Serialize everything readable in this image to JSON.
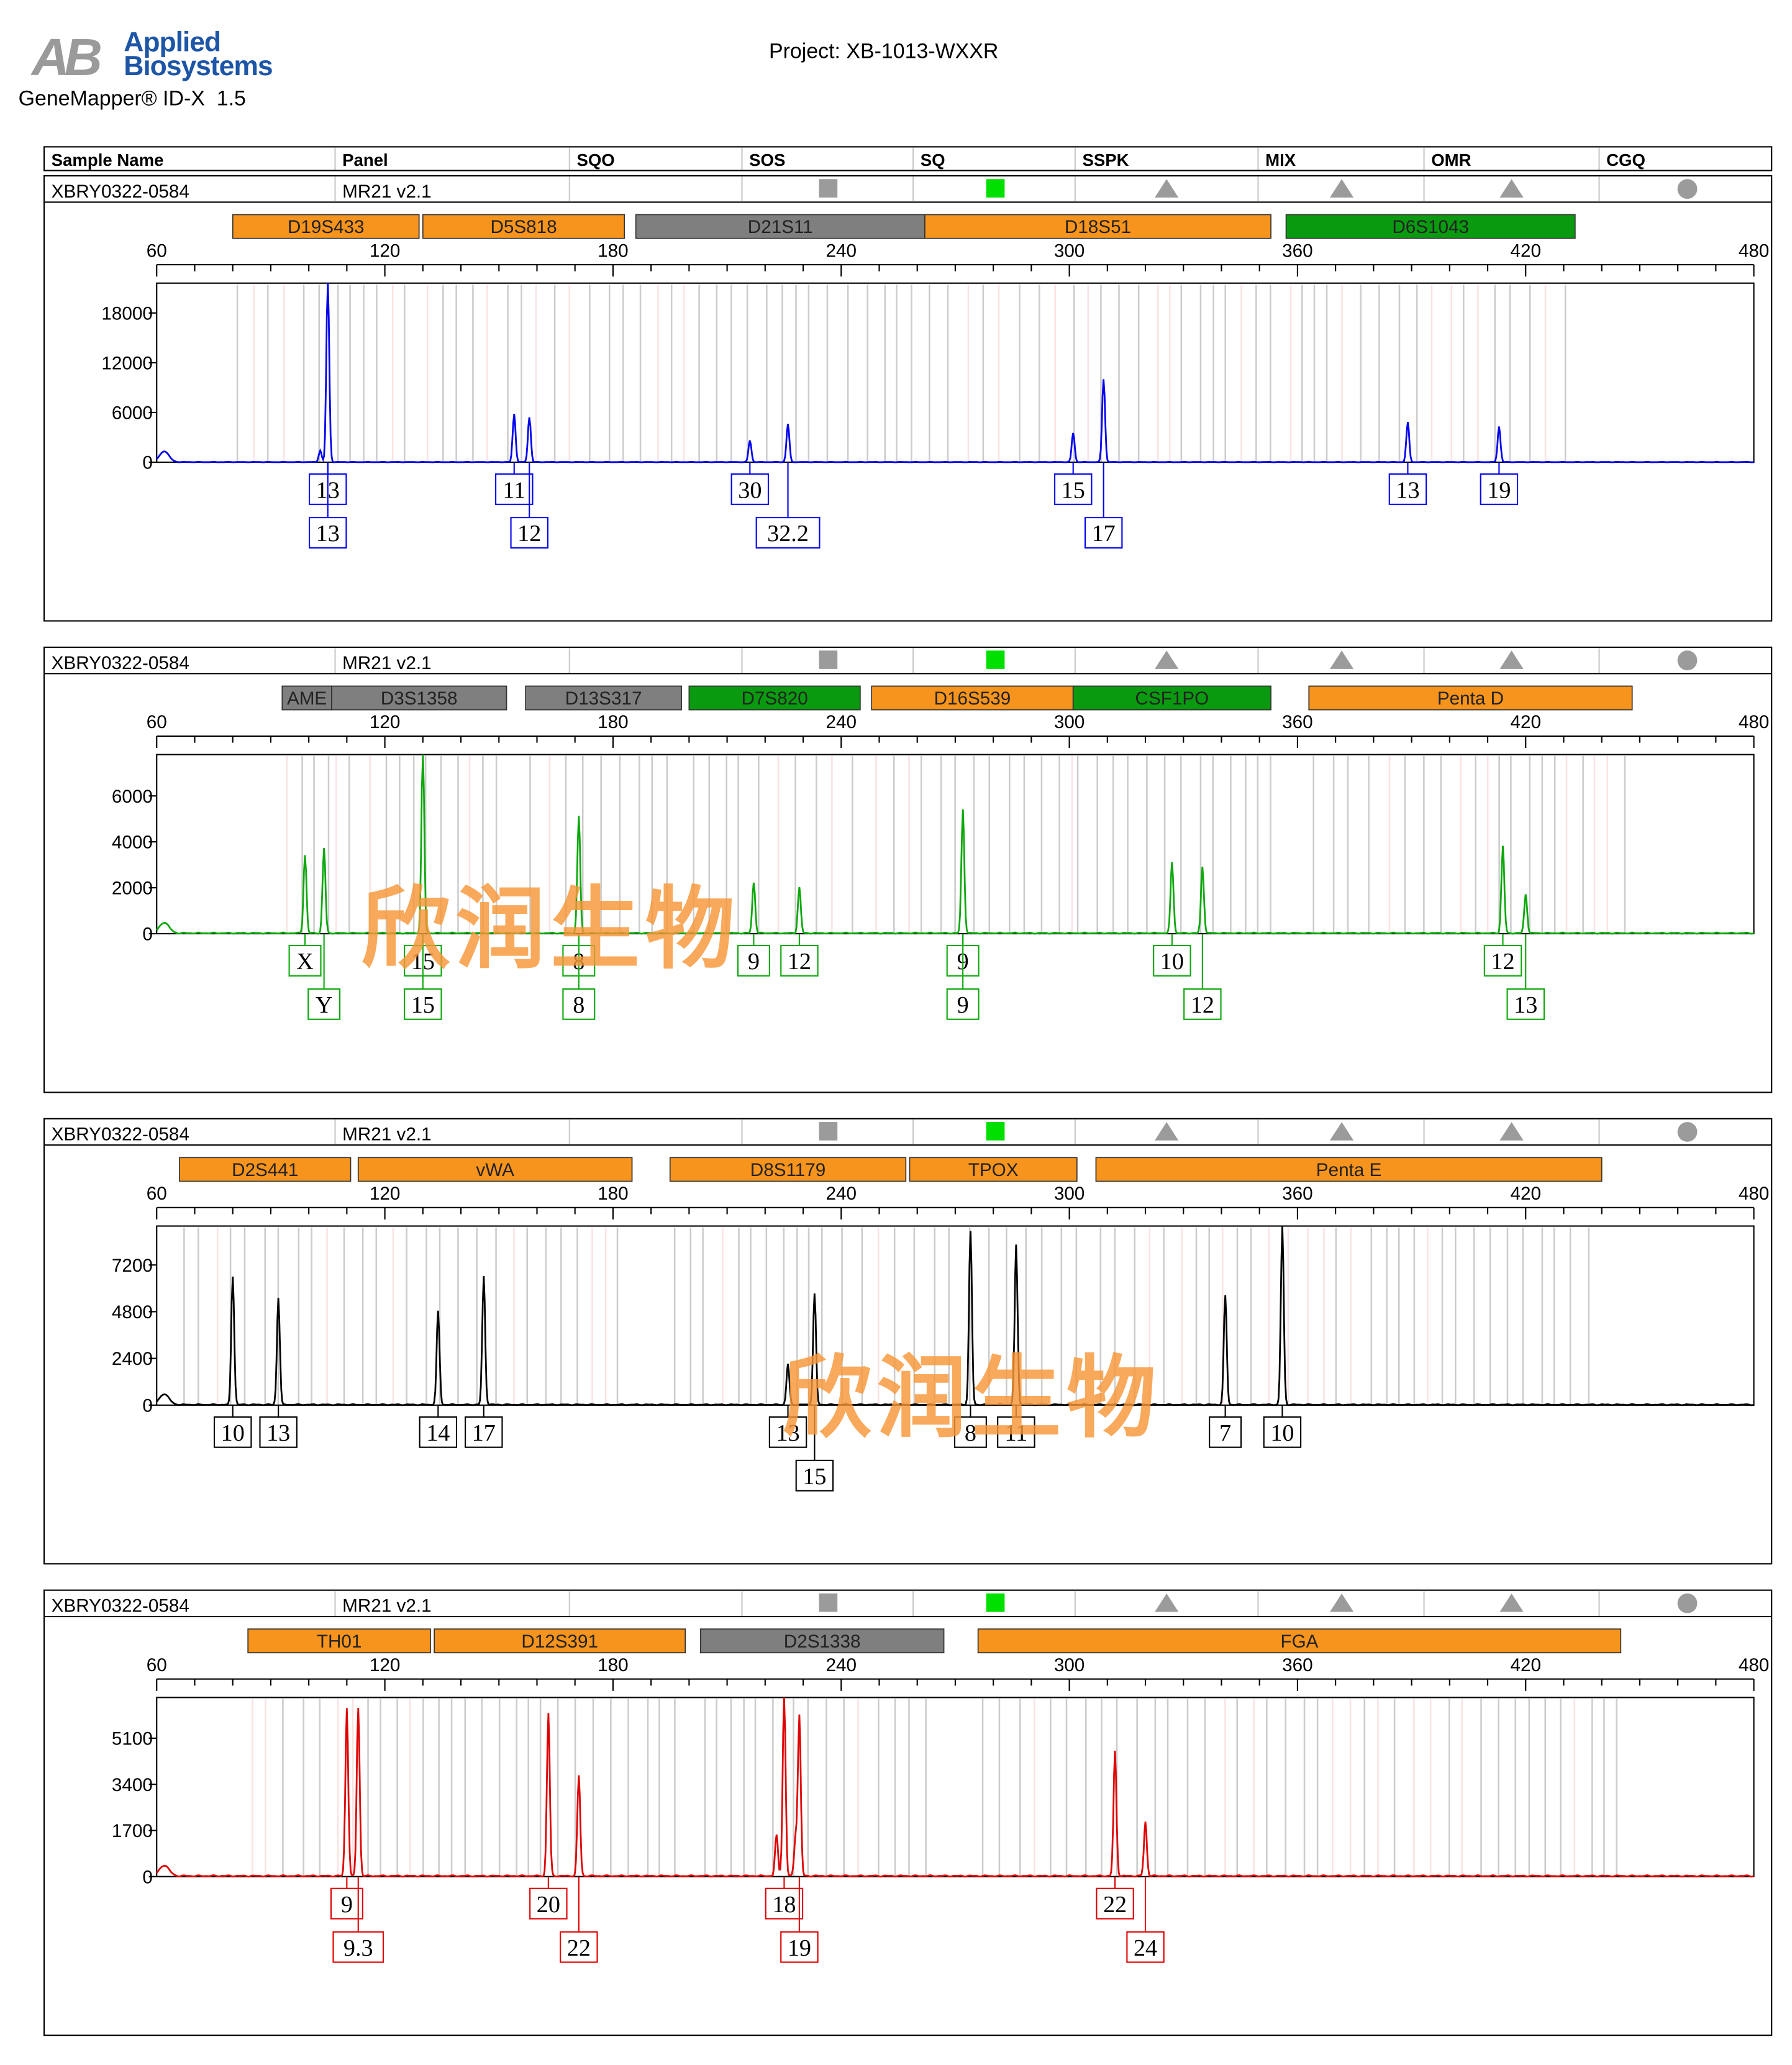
{
  "header": {
    "logo_mark": "AB",
    "brand_line1": "Applied",
    "brand_line2": "Biosystems",
    "app_name": "GeneMapper® ID-X  1.5",
    "project": "Project: XB-1013-WXXR"
  },
  "table_header": [
    "Sample Name",
    "Panel",
    "SQO",
    "SOS",
    "SQ",
    "SSPK",
    "MIX",
    "OMR",
    "CGQ"
  ],
  "quality_flags": [
    {
      "flag": "SOS",
      "shape": "square",
      "color": "#9b9b9b"
    },
    {
      "flag": "SQ",
      "shape": "square",
      "color": "#00e000"
    },
    {
      "flag": "SSPK",
      "shape": "triangle",
      "color": "#9b9b9b"
    },
    {
      "flag": "MIX",
      "shape": "triangle",
      "color": "#9b9b9b"
    },
    {
      "flag": "OMR",
      "shape": "triangle",
      "color": "#9b9b9b"
    },
    {
      "flag": "CGQ",
      "shape": "circle",
      "color": "#9b9b9b"
    }
  ],
  "watermark": "欣润生物",
  "colors": {
    "orange": "#f7941d",
    "gray": "#7f7f7f",
    "green": "#0a9a10"
  },
  "chart_data": [
    {
      "type": "line",
      "sample_name": "XBRY0322-0584",
      "panel": "MR21  v2.1",
      "dye_color": "#0000ee",
      "xlim": [
        60,
        480
      ],
      "xticks": [
        60,
        120,
        180,
        240,
        300,
        360,
        420,
        480
      ],
      "ylim": [
        0,
        21600
      ],
      "yticks": [
        0,
        6000,
        12000,
        18000
      ],
      "loci": [
        {
          "name": "D19S433",
          "start": 80,
          "end": 129,
          "color": "orange"
        },
        {
          "name": "D5S818",
          "start": 130,
          "end": 183,
          "color": "orange"
        },
        {
          "name": "D21S11",
          "start": 186,
          "end": 262,
          "color": "gray"
        },
        {
          "name": "D18S51",
          "start": 262,
          "end": 353,
          "color": "orange"
        },
        {
          "name": "D6S1043",
          "start": 357,
          "end": 433,
          "color": "green"
        }
      ],
      "peaks": [
        [
          103,
          1400
        ],
        [
          105,
          21600
        ],
        [
          154,
          5800
        ],
        [
          158,
          5400
        ],
        [
          216,
          2600
        ],
        [
          226,
          4600
        ],
        [
          301,
          3500
        ],
        [
          309,
          10000
        ],
        [
          389,
          4800
        ],
        [
          413,
          4300
        ]
      ],
      "alleles": [
        {
          "x": 105,
          "labels": [
            "13",
            "13"
          ]
        },
        {
          "x": 154,
          "labels": [
            "11"
          ]
        },
        {
          "x": 158,
          "labels": [
            "",
            "12"
          ]
        },
        {
          "x": 216,
          "labels": [
            "30"
          ]
        },
        {
          "x": 226,
          "labels": [
            "",
            "32.2"
          ]
        },
        {
          "x": 301,
          "labels": [
            "15"
          ]
        },
        {
          "x": 309,
          "labels": [
            "",
            "17"
          ]
        },
        {
          "x": 389,
          "labels": [
            "13"
          ]
        },
        {
          "x": 413,
          "labels": [
            "19"
          ]
        }
      ]
    },
    {
      "type": "line",
      "sample_name": "XBRY0322-0584",
      "panel": "MR21  v2.1",
      "dye_color": "#0ba80b",
      "xlim": [
        60,
        480
      ],
      "xticks": [
        60,
        120,
        180,
        240,
        300,
        360,
        420,
        480
      ],
      "ylim": [
        0,
        7800
      ],
      "yticks": [
        0,
        2000,
        4000,
        6000
      ],
      "loci": [
        {
          "name": "AME",
          "start": 93,
          "end": 106,
          "color": "gray"
        },
        {
          "name": "D3S1358",
          "start": 106,
          "end": 152,
          "color": "gray"
        },
        {
          "name": "D13S317",
          "start": 157,
          "end": 198,
          "color": "gray"
        },
        {
          "name": "D7S820",
          "start": 200,
          "end": 245,
          "color": "green"
        },
        {
          "name": "D16S539",
          "start": 248,
          "end": 301,
          "color": "orange"
        },
        {
          "name": "CSF1PO",
          "start": 301,
          "end": 353,
          "color": "green"
        },
        {
          "name": "Penta D",
          "start": 363,
          "end": 448,
          "color": "orange"
        }
      ],
      "peaks": [
        [
          99,
          3400
        ],
        [
          104,
          3700
        ],
        [
          130,
          7800
        ],
        [
          171,
          5100
        ],
        [
          217,
          2200
        ],
        [
          229,
          2000
        ],
        [
          272,
          5400
        ],
        [
          327,
          3100
        ],
        [
          335,
          2900
        ],
        [
          414,
          3800
        ],
        [
          420,
          1700
        ]
      ],
      "alleles": [
        {
          "x": 99,
          "labels": [
            "X"
          ]
        },
        {
          "x": 104,
          "labels": [
            "",
            "Y"
          ]
        },
        {
          "x": 130,
          "labels": [
            "15",
            "15"
          ]
        },
        {
          "x": 171,
          "labels": [
            "8",
            "8"
          ]
        },
        {
          "x": 217,
          "labels": [
            "9"
          ]
        },
        {
          "x": 229,
          "labels": [
            "12"
          ]
        },
        {
          "x": 272,
          "labels": [
            "9",
            "9"
          ]
        },
        {
          "x": 327,
          "labels": [
            "10"
          ]
        },
        {
          "x": 335,
          "labels": [
            "",
            "12"
          ]
        },
        {
          "x": 414,
          "labels": [
            "12"
          ]
        },
        {
          "x": 420,
          "labels": [
            "",
            "13"
          ]
        }
      ]
    },
    {
      "type": "line",
      "sample_name": "XBRY0322-0584",
      "panel": "MR21  v2.1",
      "dye_color": "#000000",
      "xlim": [
        60,
        480
      ],
      "xticks": [
        60,
        120,
        180,
        240,
        300,
        360,
        420,
        480
      ],
      "ylim": [
        0,
        9200
      ],
      "yticks": [
        0,
        2400,
        4800,
        7200
      ],
      "loci": [
        {
          "name": "D2S441",
          "start": 66,
          "end": 111,
          "color": "orange"
        },
        {
          "name": "vWA",
          "start": 113,
          "end": 185,
          "color": "orange"
        },
        {
          "name": "D8S1179",
          "start": 195,
          "end": 257,
          "color": "orange"
        },
        {
          "name": "TPOX",
          "start": 258,
          "end": 302,
          "color": "orange"
        },
        {
          "name": "Penta E",
          "start": 307,
          "end": 440,
          "color": "orange"
        }
      ],
      "peaks": [
        [
          80,
          6600
        ],
        [
          92,
          5500
        ],
        [
          134,
          4800
        ],
        [
          146,
          6600
        ],
        [
          226,
          2100
        ],
        [
          233,
          5700
        ],
        [
          274,
          8900
        ],
        [
          286,
          8200
        ],
        [
          341,
          5600
        ],
        [
          356,
          9200
        ]
      ],
      "alleles": [
        {
          "x": 80,
          "labels": [
            "10"
          ]
        },
        {
          "x": 92,
          "labels": [
            "13"
          ]
        },
        {
          "x": 134,
          "labels": [
            "14"
          ]
        },
        {
          "x": 146,
          "labels": [
            "17"
          ]
        },
        {
          "x": 226,
          "labels": [
            "13"
          ]
        },
        {
          "x": 233,
          "labels": [
            "",
            "15"
          ]
        },
        {
          "x": 274,
          "labels": [
            "8"
          ]
        },
        {
          "x": 286,
          "labels": [
            "11"
          ]
        },
        {
          "x": 341,
          "labels": [
            "7"
          ]
        },
        {
          "x": 356,
          "labels": [
            "10"
          ]
        }
      ]
    },
    {
      "type": "line",
      "sample_name": "XBRY0322-0584",
      "panel": "MR21  v2.1",
      "dye_color": "#e00000",
      "xlim": [
        60,
        480
      ],
      "xticks": [
        60,
        120,
        180,
        240,
        300,
        360,
        420,
        480
      ],
      "ylim": [
        0,
        6600
      ],
      "yticks": [
        0,
        1700,
        3400,
        5100
      ],
      "loci": [
        {
          "name": "TH01",
          "start": 84,
          "end": 132,
          "color": "orange"
        },
        {
          "name": "D12S391",
          "start": 133,
          "end": 199,
          "color": "orange"
        },
        {
          "name": "D2S1338",
          "start": 203,
          "end": 267,
          "color": "gray"
        },
        {
          "name": "FGA",
          "start": 276,
          "end": 445,
          "color": "orange"
        }
      ],
      "peaks": [
        [
          110,
          6200
        ],
        [
          113,
          6200
        ],
        [
          163,
          6000
        ],
        [
          171,
          3700
        ],
        [
          223,
          1500
        ],
        [
          225,
          6600
        ],
        [
          228,
          1400
        ],
        [
          229,
          5900
        ],
        [
          312,
          4600
        ],
        [
          320,
          2000
        ]
      ],
      "alleles": [
        {
          "x": 110,
          "labels": [
            "9"
          ]
        },
        {
          "x": 113,
          "labels": [
            "",
            "9.3"
          ]
        },
        {
          "x": 163,
          "labels": [
            "20"
          ]
        },
        {
          "x": 171,
          "labels": [
            "",
            "22"
          ]
        },
        {
          "x": 225,
          "labels": [
            "18"
          ]
        },
        {
          "x": 229,
          "labels": [
            "",
            "19"
          ]
        },
        {
          "x": 312,
          "labels": [
            "22"
          ]
        },
        {
          "x": 320,
          "labels": [
            "",
            "24"
          ]
        }
      ]
    }
  ]
}
